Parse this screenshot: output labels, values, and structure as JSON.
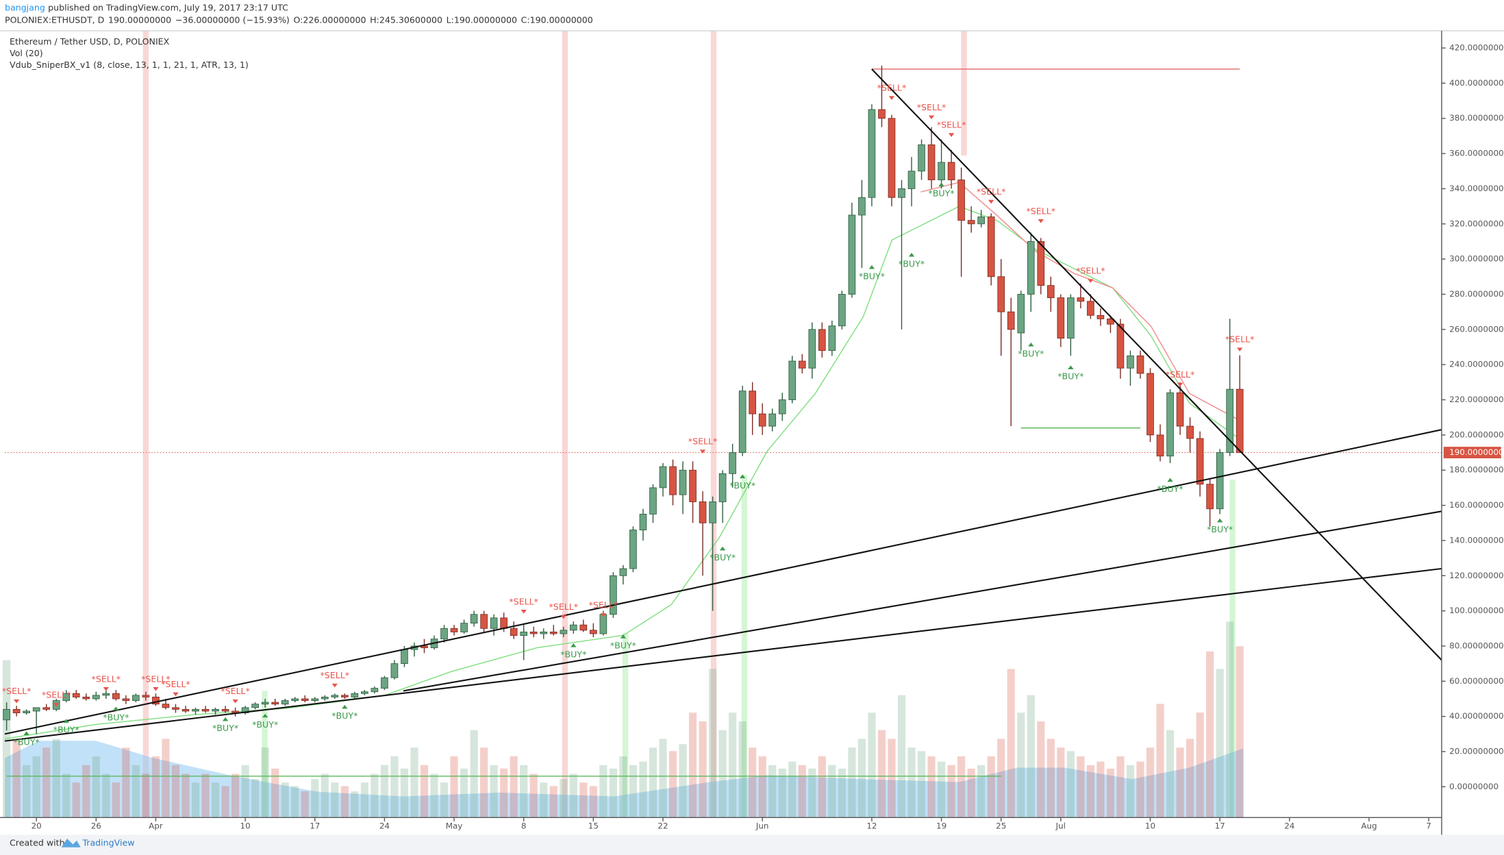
{
  "chart_data": {
    "type": "candlestick",
    "publisher": "bangjang",
    "published": "published on TradingView.com, July 19, 2017 23:17 UTC",
    "quote": [
      "POLONIEX:ETHUSDT, D",
      "190.00000000",
      "−36.00000000 (−15.93%)",
      "O:226.00000000",
      "H:245.30600000",
      "L:190.00000000",
      "C:190.00000000"
    ],
    "title": "Ethereum / Tether USD, D, POLONIEX",
    "indicators": [
      "Vol (20)",
      "Vdub_SniperBX_v1 (8, close, 13, 1, 1, 21, 1, ATR, 13, 1)"
    ],
    "footer": [
      "Created with",
      "TradingView"
    ],
    "last_price": 190,
    "last_price_label": "190.00000000",
    "up_color": "#6ba583",
    "down_color": "#d75442",
    "ylim": [
      -17.5,
      429.8
    ],
    "xlim": [
      -0.18,
      144.3
    ],
    "vlim": [
      0,
      450
    ],
    "yticks": [
      {
        "value": 0,
        "label": "0.00000000"
      },
      {
        "value": 20,
        "label": "20.00000000"
      },
      {
        "value": 40,
        "label": "40.00000000"
      },
      {
        "value": 60,
        "label": "60.00000000"
      },
      {
        "value": 80,
        "label": "80.00000000"
      },
      {
        "value": 100,
        "label": "100.00000000"
      },
      {
        "value": 120,
        "label": "120.00000000"
      },
      {
        "value": 140,
        "label": "140.00000000"
      },
      {
        "value": 160,
        "label": "160.00000000"
      },
      {
        "value": 180,
        "label": "180.00000000"
      },
      {
        "value": 200,
        "label": "200.00000000"
      },
      {
        "value": 220,
        "label": "220.00000000"
      },
      {
        "value": 240,
        "label": "240.00000000"
      },
      {
        "value": 260,
        "label": "260.00000000"
      },
      {
        "value": 280,
        "label": "280.00000000"
      },
      {
        "value": 300,
        "label": "300.00000000"
      },
      {
        "value": 320,
        "label": "320.00000000"
      },
      {
        "value": 340,
        "label": "340.00000000"
      },
      {
        "value": 360,
        "label": "360.00000000"
      },
      {
        "value": 380,
        "label": "380.00000000"
      },
      {
        "value": 400,
        "label": "400.00000000"
      },
      {
        "value": 420,
        "label": "420.00000000"
      }
    ],
    "xticks": [
      {
        "value": 3,
        "label": "20"
      },
      {
        "value": 9,
        "label": "26"
      },
      {
        "value": 15,
        "label": "Apr"
      },
      {
        "value": 24,
        "label": "10"
      },
      {
        "value": 31,
        "label": "17"
      },
      {
        "value": 38,
        "label": "24"
      },
      {
        "value": 45,
        "label": "May"
      },
      {
        "value": 52,
        "label": "8"
      },
      {
        "value": 59,
        "label": "15"
      },
      {
        "value": 66,
        "label": "22"
      },
      {
        "value": 76,
        "label": "Jun"
      },
      {
        "value": 87,
        "label": "12"
      },
      {
        "value": 94,
        "label": "19"
      },
      {
        "value": 100,
        "label": "25"
      },
      {
        "value": 106,
        "label": "Jul"
      },
      {
        "value": 115,
        "label": "10"
      },
      {
        "value": 122,
        "label": "17"
      },
      {
        "value": 129,
        "label": "24"
      },
      {
        "value": 137,
        "label": "Aug"
      },
      {
        "value": 143,
        "label": "7"
      }
    ],
    "candles": [
      [
        38,
        48,
        32,
        44
      ],
      [
        44,
        46,
        40,
        42
      ],
      [
        42,
        44,
        41,
        43
      ],
      [
        43,
        45,
        30,
        45
      ],
      [
        45,
        47,
        43,
        44
      ],
      [
        44,
        50,
        43,
        49
      ],
      [
        49,
        55,
        48,
        53
      ],
      [
        53,
        55,
        50,
        51
      ],
      [
        51,
        53,
        49,
        50
      ],
      [
        50,
        54,
        49,
        52
      ],
      [
        52,
        55,
        50,
        53
      ],
      [
        53,
        55,
        49,
        50
      ],
      [
        50,
        52,
        47,
        49
      ],
      [
        49,
        53,
        48,
        52
      ],
      [
        52,
        54,
        49,
        51
      ],
      [
        51,
        53,
        46,
        47
      ],
      [
        47,
        50,
        44,
        45
      ],
      [
        45,
        47,
        42,
        44
      ],
      [
        44,
        46,
        42,
        43
      ],
      [
        43,
        45,
        41,
        44
      ],
      [
        44,
        46,
        42,
        43
      ],
      [
        43,
        45,
        41,
        44
      ],
      [
        44,
        46,
        42,
        43
      ],
      [
        43,
        45,
        40,
        42
      ],
      [
        42,
        46,
        41,
        45
      ],
      [
        45,
        48,
        44,
        47
      ],
      [
        47,
        50,
        45,
        48
      ],
      [
        48,
        50,
        46,
        47
      ],
      [
        47,
        50,
        46,
        49
      ],
      [
        49,
        51,
        48,
        50
      ],
      [
        50,
        52,
        48,
        49
      ],
      [
        49,
        51,
        48,
        50
      ],
      [
        50,
        52,
        49,
        51
      ],
      [
        51,
        53,
        50,
        52
      ],
      [
        52,
        53,
        50,
        51
      ],
      [
        51,
        54,
        50,
        53
      ],
      [
        53,
        55,
        52,
        54
      ],
      [
        54,
        57,
        53,
        56
      ],
      [
        56,
        63,
        55,
        62
      ],
      [
        62,
        72,
        61,
        70
      ],
      [
        70,
        80,
        68,
        78
      ],
      [
        78,
        82,
        74,
        80
      ],
      [
        80,
        84,
        76,
        79
      ],
      [
        79,
        86,
        78,
        84
      ],
      [
        84,
        92,
        82,
        90
      ],
      [
        90,
        92,
        86,
        88
      ],
      [
        88,
        95,
        87,
        93
      ],
      [
        93,
        100,
        91,
        98
      ],
      [
        98,
        100,
        88,
        90
      ],
      [
        90,
        98,
        86,
        96
      ],
      [
        96,
        99,
        88,
        90
      ],
      [
        90,
        94,
        84,
        86
      ],
      [
        86,
        92,
        72,
        88
      ],
      [
        88,
        91,
        85,
        87
      ],
      [
        87,
        90,
        84,
        88
      ],
      [
        88,
        92,
        86,
        87
      ],
      [
        87,
        91,
        85,
        89
      ],
      [
        89,
        94,
        87,
        92
      ],
      [
        92,
        95,
        88,
        89
      ],
      [
        89,
        93,
        85,
        87
      ],
      [
        87,
        100,
        86,
        98
      ],
      [
        98,
        122,
        96,
        120
      ],
      [
        120,
        126,
        115,
        124
      ],
      [
        124,
        148,
        122,
        146
      ],
      [
        146,
        158,
        140,
        155
      ],
      [
        155,
        172,
        150,
        170
      ],
      [
        170,
        184,
        165,
        182
      ],
      [
        182,
        186,
        160,
        166
      ],
      [
        166,
        185,
        155,
        180
      ],
      [
        180,
        185,
        150,
        162
      ],
      [
        162,
        168,
        120,
        150
      ],
      [
        150,
        165,
        100,
        162
      ],
      [
        162,
        180,
        150,
        178
      ],
      [
        178,
        195,
        170,
        190
      ],
      [
        190,
        228,
        188,
        225
      ],
      [
        225,
        230,
        200,
        212
      ],
      [
        212,
        218,
        200,
        205
      ],
      [
        205,
        215,
        202,
        212
      ],
      [
        212,
        224,
        208,
        220
      ],
      [
        220,
        245,
        218,
        242
      ],
      [
        242,
        246,
        235,
        238
      ],
      [
        238,
        264,
        232,
        260
      ],
      [
        260,
        264,
        244,
        248
      ],
      [
        248,
        265,
        245,
        262
      ],
      [
        262,
        282,
        260,
        280
      ],
      [
        280,
        332,
        278,
        325
      ],
      [
        325,
        345,
        295,
        335
      ],
      [
        335,
        388,
        330,
        385
      ],
      [
        385,
        410,
        375,
        380
      ],
      [
        380,
        382,
        330,
        335
      ],
      [
        335,
        345,
        260,
        340
      ],
      [
        340,
        358,
        330,
        350
      ],
      [
        350,
        368,
        345,
        365
      ],
      [
        365,
        375,
        340,
        345
      ],
      [
        345,
        368,
        340,
        355
      ],
      [
        355,
        362,
        340,
        345
      ],
      [
        345,
        352,
        290,
        322
      ],
      [
        322,
        330,
        315,
        320
      ],
      [
        320,
        328,
        318,
        324
      ],
      [
        324,
        326,
        285,
        290
      ],
      [
        290,
        300,
        245,
        270
      ],
      [
        270,
        278,
        205,
        260
      ],
      [
        258,
        282,
        248,
        280
      ],
      [
        280,
        315,
        270,
        310
      ],
      [
        310,
        312,
        280,
        285
      ],
      [
        285,
        290,
        270,
        278
      ],
      [
        278,
        280,
        250,
        255
      ],
      [
        255,
        280,
        245,
        278
      ],
      [
        278,
        286,
        272,
        276
      ],
      [
        276,
        280,
        266,
        268
      ],
      [
        268,
        272,
        262,
        266
      ],
      [
        266,
        268,
        258,
        263
      ],
      [
        263,
        266,
        232,
        238
      ],
      [
        238,
        248,
        228,
        245
      ],
      [
        245,
        248,
        232,
        235
      ],
      [
        235,
        238,
        196,
        200
      ],
      [
        200,
        206,
        185,
        188
      ],
      [
        188,
        226,
        184,
        224
      ],
      [
        224,
        230,
        200,
        205
      ],
      [
        205,
        210,
        190,
        198
      ],
      [
        198,
        202,
        165,
        172
      ],
      [
        172,
        175,
        148,
        158
      ],
      [
        158,
        192,
        155,
        190
      ],
      [
        190,
        266,
        188,
        226
      ],
      [
        226,
        245.306,
        190,
        190
      ]
    ],
    "volume": [
      90,
      45,
      30,
      35,
      40,
      45,
      25,
      20,
      30,
      35,
      25,
      20,
      40,
      30,
      25,
      35,
      45,
      30,
      25,
      20,
      25,
      20,
      18,
      25,
      30,
      22,
      40,
      28,
      20,
      18,
      15,
      22,
      25,
      20,
      18,
      15,
      20,
      25,
      30,
      35,
      28,
      40,
      30,
      25,
      20,
      35,
      28,
      50,
      40,
      30,
      28,
      35,
      30,
      25,
      20,
      18,
      22,
      25,
      20,
      18,
      30,
      28,
      35,
      30,
      32,
      40,
      45,
      38,
      42,
      60,
      55,
      85,
      50,
      60,
      55,
      40,
      35,
      30,
      28,
      32,
      30,
      28,
      35,
      30,
      28,
      40,
      45,
      60,
      50,
      45,
      70,
      40,
      38,
      35,
      32,
      30,
      35,
      28,
      30,
      35,
      45,
      85,
      60,
      70,
      55,
      45,
      40,
      38,
      35,
      30,
      32,
      28,
      35,
      30,
      32,
      40,
      65,
      50,
      40,
      45,
      60,
      95,
      85,
      112,
      98
    ],
    "signals": [
      {
        "label": "*SELL*",
        "x": 89,
        "y": 397
      },
      {
        "label": "*SELL*",
        "x": 93,
        "y": 386
      },
      {
        "label": "*SELL*",
        "x": 95,
        "y": 376
      },
      {
        "label": "*SELL*",
        "x": 99,
        "y": 338
      },
      {
        "label": "*SELL*",
        "x": 104,
        "y": 327
      },
      {
        "label": "*SELL*",
        "x": 109,
        "y": 293
      },
      {
        "label": "*SELL*",
        "x": 118,
        "y": 234
      },
      {
        "label": "*SELL*",
        "x": 124,
        "y": 254
      },
      {
        "label": "*SELL*",
        "x": 70,
        "y": 196
      },
      {
        "label": "*SELL*",
        "x": 52,
        "y": 105
      },
      {
        "label": "*SELL*",
        "x": 56,
        "y": 102
      },
      {
        "label": "*SELL*",
        "x": 60,
        "y": 103
      },
      {
        "label": "*SELL*",
        "x": 33,
        "y": 63
      },
      {
        "label": "*SELL*",
        "x": 23,
        "y": 54
      },
      {
        "label": "*SELL*",
        "x": 17,
        "y": 58
      },
      {
        "label": "*SELL*",
        "x": 15,
        "y": 61
      },
      {
        "label": "*SELL*",
        "x": 10,
        "y": 61
      },
      {
        "label": "*SELL*",
        "x": 5,
        "y": 52
      },
      {
        "label": "*SELL*",
        "x": 1,
        "y": 54
      },
      {
        "label": "*BUY*",
        "x": 87,
        "y": 290
      },
      {
        "label": "*BUY*",
        "x": 91,
        "y": 297
      },
      {
        "label": "*BUY*",
        "x": 94,
        "y": 337
      },
      {
        "label": "*BUY*",
        "x": 103,
        "y": 246
      },
      {
        "label": "*BUY*",
        "x": 107,
        "y": 233
      },
      {
        "label": "*BUY*",
        "x": 117,
        "y": 169
      },
      {
        "label": "*BUY*",
        "x": 122,
        "y": 146
      },
      {
        "label": "*BUY*",
        "x": 74,
        "y": 171
      },
      {
        "label": "*BUY*",
        "x": 72,
        "y": 130
      },
      {
        "label": "*BUY*",
        "x": 62,
        "y": 80
      },
      {
        "label": "*BUY*",
        "x": 57,
        "y": 75
      },
      {
        "label": "*BUY*",
        "x": 34,
        "y": 40
      },
      {
        "label": "*BUY*",
        "x": 26,
        "y": 35
      },
      {
        "label": "*BUY*",
        "x": 22,
        "y": 33
      },
      {
        "label": "*BUY*",
        "x": 11,
        "y": 39
      },
      {
        "label": "*BUY*",
        "x": 6,
        "y": 32
      },
      {
        "label": "*BUY*",
        "x": 2,
        "y": 25
      }
    ],
    "trend_lines": [
      [
        [
          87,
          408
        ],
        [
          144.3,
          72
        ]
      ],
      [
        [
          -0.18,
          30
        ],
        [
          144.3,
          203
        ]
      ],
      [
        [
          39.9,
          54.5
        ],
        [
          144.3,
          156.6
        ]
      ],
      [
        [
          -0.18,
          26
        ],
        [
          144.3,
          124
        ]
      ]
    ],
    "levels": [
      {
        "value": 408,
        "from": 87,
        "to": 124,
        "color": "#e06666"
      },
      {
        "value": 204,
        "from": 102,
        "to": 114,
        "color": "#5cb85c"
      },
      {
        "value": 6,
        "from": 0,
        "to": 100,
        "color": "#5cb85c"
      }
    ]
  }
}
